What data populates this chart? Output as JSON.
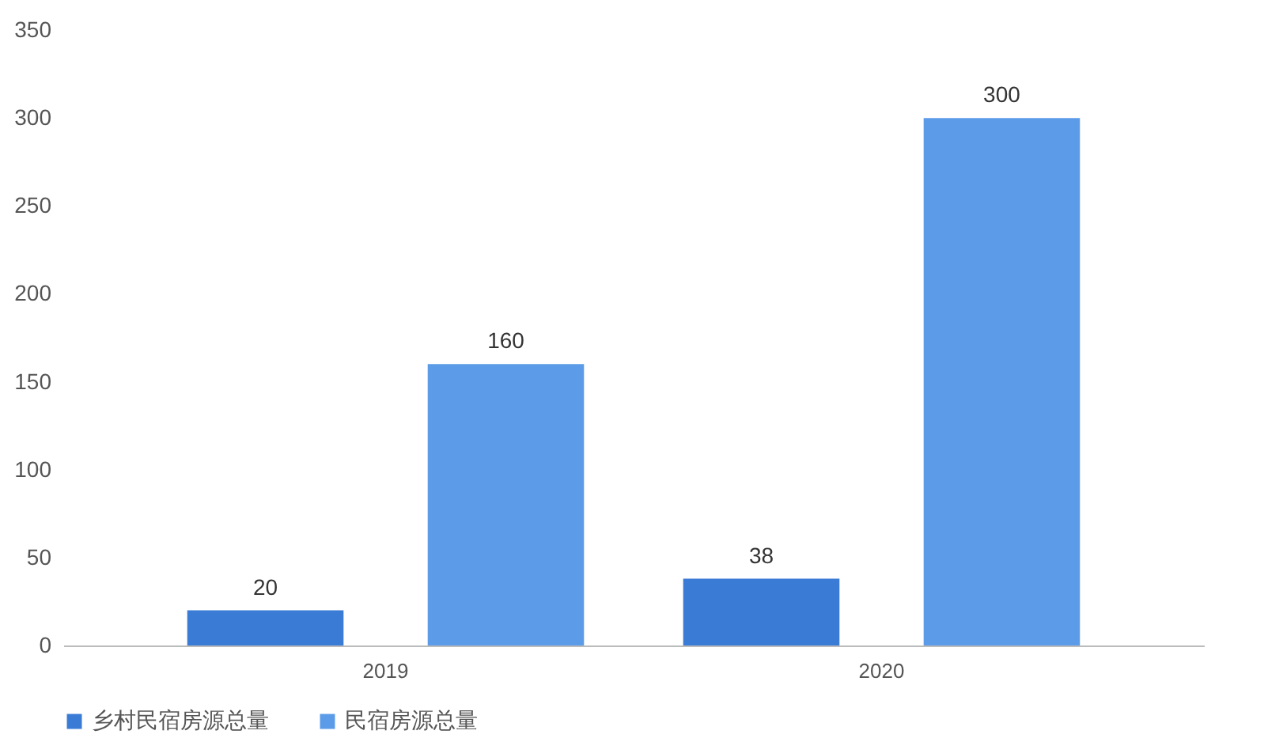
{
  "chart_data": {
    "type": "bar",
    "categories": [
      "2019",
      "2020"
    ],
    "series": [
      {
        "name": "乡村民宿房源总量",
        "color": "#3a7bd5",
        "values": [
          20,
          38
        ]
      },
      {
        "name": "民宿房源总量",
        "color": "#5b9be8",
        "values": [
          160,
          300
        ]
      }
    ],
    "ylim": [
      0,
      350
    ],
    "yticks": [
      0,
      50,
      100,
      150,
      200,
      250,
      300,
      350
    ],
    "grid": false,
    "legend": "bottom",
    "data_labels": true
  }
}
